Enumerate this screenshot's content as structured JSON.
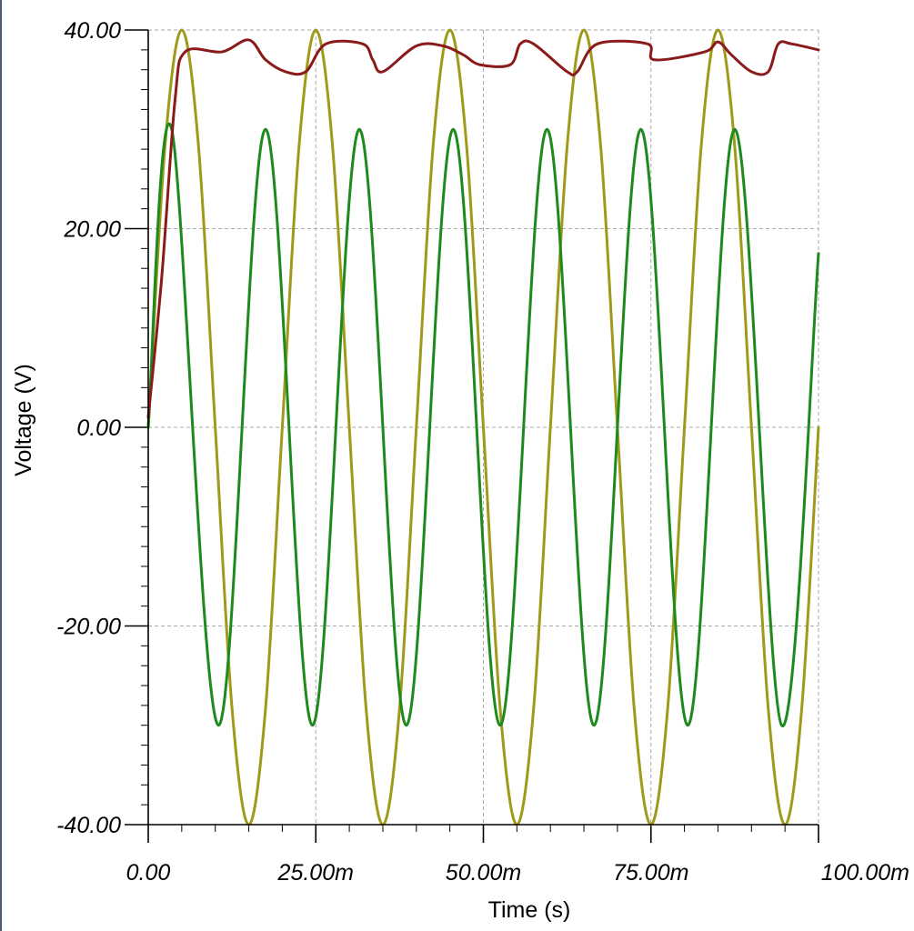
{
  "chart_data": {
    "type": "line",
    "xlabel": "Time (s)",
    "ylabel": "Voltage (V)",
    "xlim": [
      0,
      0.1
    ],
    "ylim": [
      -40,
      40
    ],
    "x_ticks": [
      0,
      0.025,
      0.05,
      0.075,
      0.1
    ],
    "x_tick_labels": [
      "0.00",
      "25.00m",
      "50.00m",
      "75.00m",
      "100.00m"
    ],
    "y_ticks": [
      40,
      20,
      0,
      -20,
      -40
    ],
    "y_tick_labels": [
      "40.00",
      "20.00",
      "0.00",
      "-20.00",
      "-40.00"
    ],
    "grid": true,
    "series": [
      {
        "color": "#a09a1a",
        "x": [
          0,
          0.0025,
          0.005,
          0.0075,
          0.01,
          0.0125,
          0.015,
          0.0175,
          0.02,
          0.0225,
          0.025,
          0.0275,
          0.03,
          0.0325,
          0.035,
          0.0375,
          0.04,
          0.0425,
          0.045,
          0.0475,
          0.05,
          0.0525,
          0.055,
          0.0575,
          0.06,
          0.0625,
          0.065,
          0.0675,
          0.07,
          0.0725,
          0.075,
          0.0775,
          0.08,
          0.0825,
          0.085,
          0.0875,
          0.09,
          0.0925,
          0.095,
          0.0975,
          0.1
        ],
        "values": [
          0,
          28.3,
          40,
          28.3,
          0,
          -28.3,
          -40,
          -28.3,
          0,
          28.3,
          40,
          28.3,
          0,
          -28.3,
          -40,
          -28.3,
          0,
          28.3,
          40,
          28.3,
          0,
          -28.3,
          -40,
          -28.3,
          0,
          28.3,
          40,
          28.3,
          0,
          -28.3,
          -40,
          -28.3,
          0,
          28.3,
          40,
          28.3,
          0,
          -28.3,
          -40,
          -28.3,
          0
        ]
      },
      {
        "color": "#1e8a1e",
        "x": [
          0,
          0.0035,
          0.0105,
          0.0175,
          0.0245,
          0.0315,
          0.0385,
          0.0455,
          0.0525,
          0.0595,
          0.0665,
          0.0735,
          0.0805,
          0.0875,
          0.0945,
          0.1
        ],
        "values": [
          0,
          30,
          -30,
          30,
          -30,
          30,
          -30,
          30,
          -30,
          30,
          -30,
          30,
          -30,
          30,
          -30,
          17.5
        ]
      },
      {
        "color": "#8b1a1a",
        "x": [
          0,
          0.002,
          0.004,
          0.0055,
          0.011,
          0.015,
          0.0175,
          0.0205,
          0.0235,
          0.0265,
          0.032,
          0.0335,
          0.035,
          0.04,
          0.044,
          0.047,
          0.0495,
          0.054,
          0.0555,
          0.0575,
          0.0625,
          0.064,
          0.067,
          0.0745,
          0.0755,
          0.083,
          0.085,
          0.087,
          0.09,
          0.0925,
          0.094,
          0.096,
          0.1
        ],
        "values": [
          1,
          15,
          33,
          37.8,
          37.8,
          39,
          37,
          35.8,
          35.8,
          38.6,
          38.6,
          37,
          35.8,
          38.4,
          38.4,
          37.5,
          36.5,
          36.5,
          38.6,
          38.6,
          35.8,
          35.8,
          38.6,
          38.6,
          37,
          37.8,
          38.8,
          37.5,
          35.8,
          35.8,
          38.6,
          38.6,
          38
        ]
      }
    ]
  }
}
